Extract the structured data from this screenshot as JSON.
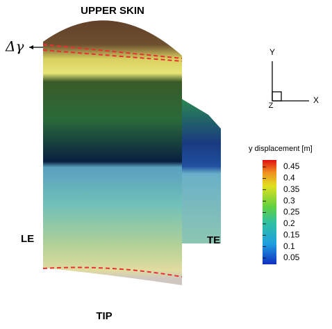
{
  "labels": {
    "top": "UPPER SKIN",
    "bottom": "TIP",
    "left": "LE",
    "right": "TE",
    "delta": "Δγ"
  },
  "axes": {
    "y": "Y",
    "x": "X",
    "z": "Z"
  },
  "colorbar": {
    "title": "y displacement  [m]",
    "ticks": [
      "0.45",
      "0.4",
      "0.35",
      "0.3",
      "0.25",
      "0.2",
      "0.15",
      "0.1",
      "0.05"
    ]
  }
}
